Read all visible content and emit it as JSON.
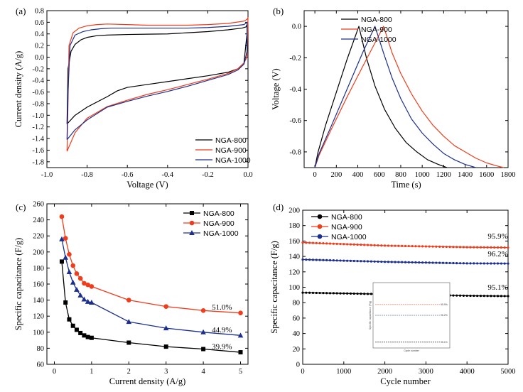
{
  "colors": {
    "s800": "#000000",
    "s900": "#ee3d1c",
    "s1000": "#1c2f8f"
  },
  "chart_data": [
    {
      "panel": "(a)",
      "type": "line",
      "xlabel": "Voltage (V)",
      "ylabel": "Current density (A/g)",
      "xlim": [
        -1.0,
        0.0
      ],
      "ylim": [
        -1.9,
        0.8
      ],
      "xticks": [
        -1.0,
        -0.8,
        -0.6,
        -0.4,
        -0.2,
        0.0
      ],
      "xtick_labels": [
        "-1.0",
        "-0.8",
        "-0.6",
        "-0.4",
        "-0.2",
        "0.0"
      ],
      "yticks": [
        0.8,
        0.6,
        0.4,
        0.2,
        0.0,
        -0.2,
        -0.4,
        -0.6,
        -0.8,
        -1.0,
        -1.2,
        -1.4,
        -1.6,
        -1.8
      ],
      "ytick_labels": [
        "0.8",
        "0.6",
        "0.4",
        "0.2",
        "0.0",
        "-0.2",
        "-0.4",
        "-0.6",
        "-0.8",
        "-1.0",
        "-1.2",
        "-1.4",
        "-1.6",
        "-1.8"
      ],
      "legend_position": "bottom-right",
      "series": [
        {
          "name": "NGA-800",
          "color_key": "s800",
          "x": [
            -0.9,
            -0.895,
            -0.88,
            -0.86,
            -0.83,
            -0.8,
            -0.75,
            -0.7,
            -0.65,
            -0.6,
            -0.5,
            -0.4,
            -0.3,
            -0.2,
            -0.1,
            -0.03,
            -0.01,
            -0.005,
            -0.005,
            -0.02,
            -0.05,
            -0.1,
            -0.2,
            -0.3,
            -0.4,
            -0.5,
            -0.6,
            -0.65,
            -0.7,
            -0.8,
            -0.86,
            -0.9
          ],
          "y": [
            -1.15,
            -0.2,
            0.1,
            0.22,
            0.3,
            0.34,
            0.37,
            0.38,
            0.385,
            0.39,
            0.395,
            0.4,
            0.42,
            0.44,
            0.47,
            0.5,
            0.52,
            0.56,
            0.4,
            -0.1,
            -0.2,
            -0.26,
            -0.32,
            -0.37,
            -0.42,
            -0.47,
            -0.52,
            -0.58,
            -0.68,
            -0.86,
            -1.0,
            -1.15
          ]
        },
        {
          "name": "NGA-900",
          "color_key": "s900",
          "x": [
            -0.9,
            -0.895,
            -0.89,
            -0.87,
            -0.84,
            -0.8,
            -0.75,
            -0.7,
            -0.6,
            -0.5,
            -0.4,
            -0.3,
            -0.2,
            -0.1,
            -0.02,
            -0.005,
            0.0,
            -0.005,
            -0.02,
            -0.05,
            -0.1,
            -0.2,
            -0.3,
            -0.4,
            -0.5,
            -0.6,
            -0.7,
            -0.8,
            -0.86,
            -0.9
          ],
          "y": [
            -1.62,
            -0.8,
            0.2,
            0.42,
            0.5,
            0.54,
            0.56,
            0.57,
            0.56,
            0.55,
            0.55,
            0.55,
            0.56,
            0.58,
            0.62,
            0.65,
            0.68,
            0.0,
            -0.1,
            -0.2,
            -0.28,
            -0.38,
            -0.47,
            -0.56,
            -0.64,
            -0.74,
            -0.85,
            -1.05,
            -1.3,
            -1.62
          ]
        },
        {
          "name": "NGA-1000",
          "color_key": "s1000",
          "x": [
            -0.9,
            -0.895,
            -0.885,
            -0.86,
            -0.82,
            -0.78,
            -0.73,
            -0.68,
            -0.6,
            -0.5,
            -0.4,
            -0.3,
            -0.2,
            -0.1,
            -0.02,
            -0.005,
            -0.005,
            -0.02,
            -0.05,
            -0.1,
            -0.2,
            -0.3,
            -0.4,
            -0.5,
            -0.6,
            -0.7,
            -0.8,
            -0.86,
            -0.9
          ],
          "y": [
            -1.42,
            -0.6,
            0.2,
            0.38,
            0.44,
            0.47,
            0.49,
            0.5,
            0.5,
            0.5,
            0.5,
            0.5,
            0.51,
            0.53,
            0.56,
            0.6,
            0.1,
            -0.12,
            -0.22,
            -0.3,
            -0.4,
            -0.5,
            -0.59,
            -0.67,
            -0.76,
            -0.86,
            -1.08,
            -1.25,
            -1.42
          ]
        }
      ]
    },
    {
      "panel": "(b)",
      "type": "line",
      "xlabel": "Time (s)",
      "ylabel": "Voltage (V)",
      "xlim": [
        -100,
        1800
      ],
      "ylim": [
        -0.9,
        0.1
      ],
      "xticks": [
        0,
        200,
        400,
        600,
        800,
        1000,
        1200,
        1400,
        1600,
        1800
      ],
      "xtick_labels": [
        "0",
        "200",
        "400",
        "600",
        "800",
        "1000",
        "1200",
        "1400",
        "1600",
        "1800"
      ],
      "yticks": [
        0.0,
        -0.2,
        -0.4,
        -0.6,
        -0.8
      ],
      "ytick_labels": [
        "0.0",
        "-0.2",
        "-0.4",
        "-0.6",
        "-0.8"
      ],
      "legend_position": "top-right",
      "series": [
        {
          "name": "NGA-800",
          "color_key": "s800",
          "x": [
            0,
            30,
            100,
            200,
            300,
            410,
            480,
            560,
            650,
            750,
            850,
            950,
            1050,
            1150,
            1230
          ],
          "y": [
            -0.9,
            -0.8,
            -0.63,
            -0.42,
            -0.21,
            0.0,
            -0.2,
            -0.38,
            -0.53,
            -0.65,
            -0.74,
            -0.8,
            -0.85,
            -0.88,
            -0.9
          ]
        },
        {
          "name": "NGA-900",
          "color_key": "s900",
          "x": [
            0,
            40,
            150,
            300,
            450,
            640,
            720,
            800,
            900,
            1000,
            1100,
            1200,
            1300,
            1400,
            1500,
            1600,
            1700,
            1760
          ],
          "y": [
            -0.9,
            -0.82,
            -0.66,
            -0.45,
            -0.25,
            0.0,
            -0.17,
            -0.3,
            -0.43,
            -0.54,
            -0.63,
            -0.7,
            -0.76,
            -0.8,
            -0.84,
            -0.87,
            -0.89,
            -0.9
          ]
        },
        {
          "name": "NGA-1000",
          "color_key": "s1000",
          "x": [
            0,
            40,
            150,
            300,
            450,
            560,
            640,
            720,
            800,
            900,
            1000,
            1100,
            1200,
            1300,
            1400,
            1500
          ],
          "y": [
            -0.9,
            -0.81,
            -0.64,
            -0.4,
            -0.16,
            0.0,
            -0.17,
            -0.33,
            -0.46,
            -0.59,
            -0.68,
            -0.75,
            -0.81,
            -0.85,
            -0.88,
            -0.9
          ]
        }
      ]
    },
    {
      "panel": "(c)",
      "type": "line",
      "xlabel": "Current density (A/g)",
      "ylabel": "Specific capacitance (F/g)",
      "xlim": [
        -0.2,
        5.2
      ],
      "ylim": [
        60,
        260
      ],
      "xticks": [
        0,
        1,
        2,
        3,
        4,
        5
      ],
      "xtick_labels": [
        "0",
        "1",
        "2",
        "3",
        "4",
        "5"
      ],
      "yticks": [
        60,
        80,
        100,
        120,
        140,
        160,
        180,
        200,
        220,
        240,
        260
      ],
      "ytick_labels": [
        "60",
        "80",
        "100",
        "120",
        "140",
        "160",
        "180",
        "200",
        "220",
        "240",
        "260"
      ],
      "legend_position": "top-right",
      "annotations": [
        {
          "text": "51.0%",
          "x": 4.5,
          "y": 128
        },
        {
          "text": "44.9%",
          "x": 4.5,
          "y": 100
        },
        {
          "text": "39.9%",
          "x": 4.5,
          "y": 79
        }
      ],
      "series": [
        {
          "name": "NGA-800",
          "color_key": "s800",
          "marker": "square",
          "x": [
            0.2,
            0.3,
            0.4,
            0.5,
            0.6,
            0.7,
            0.8,
            0.9,
            1,
            2,
            3,
            4,
            5
          ],
          "y": [
            188,
            137,
            116,
            108,
            103,
            99,
            96,
            94,
            93,
            87,
            82,
            79,
            75
          ]
        },
        {
          "name": "NGA-900",
          "color_key": "s900",
          "marker": "circle",
          "x": [
            0.2,
            0.3,
            0.4,
            0.5,
            0.6,
            0.7,
            0.8,
            0.9,
            1,
            2,
            3,
            4,
            5
          ],
          "y": [
            244,
            217,
            197,
            183,
            173,
            167,
            161,
            159,
            157,
            140,
            132,
            127,
            124
          ]
        },
        {
          "name": "NGA-1000",
          "color_key": "s1000",
          "marker": "triangle",
          "x": [
            0.2,
            0.3,
            0.4,
            0.5,
            0.6,
            0.7,
            0.8,
            0.9,
            1,
            2,
            3,
            4,
            5
          ],
          "y": [
            216,
            193,
            175,
            162,
            153,
            146,
            141,
            138,
            137,
            113,
            105,
            100,
            96
          ]
        }
      ]
    },
    {
      "panel": "(d)",
      "type": "line",
      "xlabel": "Cycle number",
      "ylabel": "Specific capacitance (F/g)",
      "xlim": [
        0,
        5000
      ],
      "ylim": [
        0,
        200
      ],
      "xticks": [
        0,
        1000,
        2000,
        3000,
        4000,
        5000
      ],
      "xtick_labels": [
        "0",
        "1000",
        "2000",
        "3000",
        "4000",
        "5000"
      ],
      "yticks": [
        0,
        20,
        40,
        60,
        80,
        100,
        120,
        140,
        160,
        180,
        200
      ],
      "ytick_labels": [
        "0",
        "20",
        "40",
        "60",
        "80",
        "100",
        "120",
        "140",
        "160",
        "180",
        "200"
      ],
      "legend_position": "top-left",
      "annotations": [
        {
          "text": "95.9%",
          "x": 4750,
          "y": 163
        },
        {
          "text": "96.2%",
          "x": 4750,
          "y": 140
        },
        {
          "text": "95.1%",
          "x": 4750,
          "y": 97
        }
      ],
      "series": [
        {
          "name": "NGA-800",
          "color_key": "s800",
          "marker": "dot",
          "x": [
            0,
            1000,
            2000,
            3000,
            4000,
            5000
          ],
          "y": [
            93,
            92,
            91,
            90,
            89,
            88.5
          ]
        },
        {
          "name": "NGA-900",
          "color_key": "s900",
          "marker": "dot",
          "x": [
            0,
            1000,
            2000,
            3000,
            4000,
            5000
          ],
          "y": [
            158,
            156,
            154,
            153,
            152,
            151.5
          ]
        },
        {
          "name": "NGA-1000",
          "color_key": "s1000",
          "marker": "dot",
          "x": [
            0,
            1000,
            2000,
            3000,
            4000,
            5000
          ],
          "y": [
            136,
            134.5,
            133,
            132,
            131,
            130.8
          ]
        }
      ],
      "inset": {
        "xlabel": "Cycle number",
        "ylabel": "Specific capacitance (F/g)",
        "series": [
          {
            "color_key": "s900",
            "y_frac": 0.68,
            "label": "95.9%"
          },
          {
            "color_key": "s1000",
            "y_frac": 0.5,
            "label": "96.2%"
          },
          {
            "color_key": "s800",
            "y_frac": 0.05,
            "label": "95.1%"
          }
        ]
      }
    }
  ]
}
